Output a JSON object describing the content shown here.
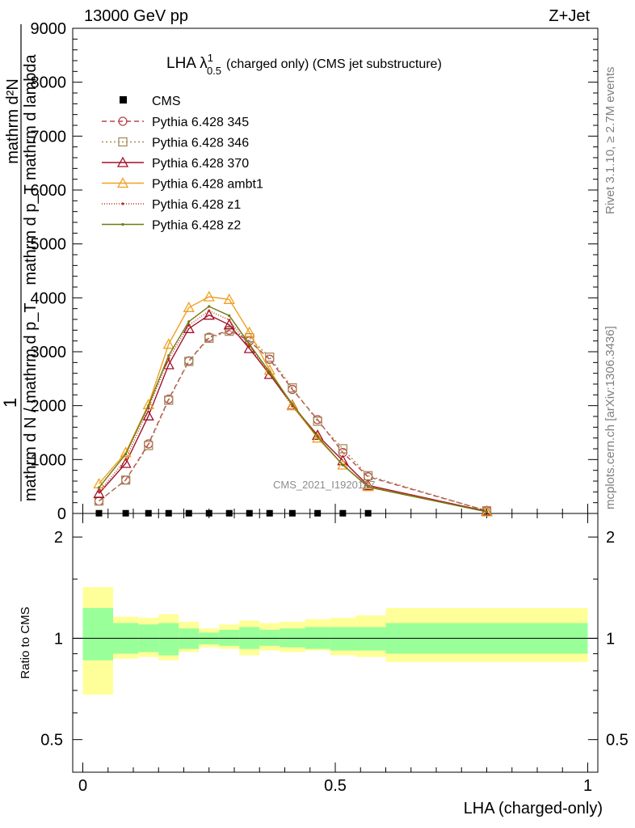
{
  "header": {
    "left": "13000 GeV pp",
    "right": "Z+Jet"
  },
  "title": {
    "main": "LHA λ",
    "sup": "1",
    "sub": "0.5",
    "rest": "(charged only) (CMS jet substructure)"
  },
  "ylabel_upper": {
    "text": "mathrm d N / mathrm d p_T mathrm d lambda",
    "num": "1",
    "denom": "mathrm d N / mathrm d p_T",
    "line2a": "mathrm d²N",
    "line2b": "mathrm d p_T mathrm d lambda"
  },
  "side": {
    "rivet": "Rivet 3.1.10, ≥ 2.7M events",
    "mcplots": "mcplots.cern.ch [arXiv:1306.3436]"
  },
  "watermark": "CMS_2021_I1920187",
  "xlabel": "LHA (charged-only)",
  "ratio_ylabel": "Ratio to CMS",
  "chart_data": {
    "type": "line",
    "x": [
      0.032,
      0.085,
      0.13,
      0.17,
      0.21,
      0.25,
      0.29,
      0.33,
      0.37,
      0.415,
      0.465,
      0.515,
      0.565,
      0.8
    ],
    "xlim": [
      -0.02,
      1.02
    ],
    "ylim": [
      0,
      9000
    ],
    "yticks": [
      0,
      1000,
      2000,
      3000,
      4000,
      5000,
      6000,
      7000,
      8000,
      9000
    ],
    "ytick_labels": [
      "0",
      "1000",
      "2000",
      "3000",
      "4000",
      "5000",
      "6000",
      "7000",
      "8000",
      "9000"
    ],
    "xticks": [
      0,
      0.5,
      1
    ],
    "xtick_labels": [
      "0",
      "0.5",
      "1"
    ],
    "cms": {
      "name": "CMS",
      "x": [
        0.032,
        0.085,
        0.13,
        0.17,
        0.21,
        0.25,
        0.29,
        0.33,
        0.37,
        0.415,
        0.465,
        0.515,
        0.565
      ],
      "values": [
        4,
        4,
        4,
        4,
        4,
        4,
        4,
        4,
        4,
        4,
        4,
        4,
        4
      ]
    },
    "series": [
      {
        "name": "Pythia 6.428 345",
        "color": "#b5474e",
        "dash": "6,4",
        "marker": "circle",
        "values": [
          230,
          620,
          1290,
          2120,
          2830,
          3270,
          3400,
          3200,
          2860,
          2300,
          1740,
          1130,
          680,
          50
        ]
      },
      {
        "name": "Pythia 6.428 346",
        "color": "#a88a58",
        "dash": "2,3",
        "marker": "square",
        "values": [
          230,
          620,
          1260,
          2100,
          2820,
          3250,
          3380,
          3260,
          2900,
          2330,
          1710,
          1200,
          700,
          50
        ]
      },
      {
        "name": "Pythia 6.428 370",
        "color": "#a0102a",
        "dash": "",
        "marker": "triangle",
        "values": [
          370,
          930,
          1810,
          2760,
          3430,
          3680,
          3500,
          3060,
          2580,
          2010,
          1450,
          980,
          520,
          40
        ]
      },
      {
        "name": "Pythia 6.428 ambt1",
        "color": "#f0a020",
        "dash": "",
        "marker": "triangle",
        "values": [
          550,
          1130,
          2020,
          3140,
          3820,
          4020,
          3970,
          3360,
          2660,
          2000,
          1400,
          900,
          500,
          30
        ]
      },
      {
        "name": "Pythia 6.428 z1",
        "color": "#c03020",
        "dash": "1,2",
        "marker": "dot",
        "values": [
          400,
          1000,
          1950,
          2870,
          3490,
          3760,
          3590,
          3100,
          2590,
          1990,
          1420,
          900,
          500,
          30
        ]
      },
      {
        "name": "Pythia 6.428 z2",
        "color": "#6b7a10",
        "dash": "",
        "marker": "dot",
        "values": [
          480,
          1100,
          2000,
          2930,
          3560,
          3840,
          3670,
          3140,
          2620,
          2030,
          1420,
          900,
          490,
          30
        ]
      }
    ],
    "ratio": {
      "ylim": [
        0.4,
        2.35
      ],
      "log": true,
      "yticks": [
        0.5,
        1,
        2
      ],
      "ytick_labels": [
        "0.5",
        "1",
        "2"
      ],
      "bin_edges": [
        0,
        0.06,
        0.11,
        0.15,
        0.19,
        0.23,
        0.27,
        0.31,
        0.35,
        0.39,
        0.44,
        0.49,
        0.54,
        0.6,
        1.0
      ],
      "band_inner": [
        [
          0.86,
          1.23
        ],
        [
          0.9,
          1.11
        ],
        [
          0.91,
          1.1
        ],
        [
          0.89,
          1.11
        ],
        [
          0.93,
          1.07
        ],
        [
          0.96,
          1.04
        ],
        [
          0.95,
          1.06
        ],
        [
          0.93,
          1.08
        ],
        [
          0.95,
          1.06
        ],
        [
          0.94,
          1.07
        ],
        [
          0.93,
          1.08
        ],
        [
          0.92,
          1.08
        ],
        [
          0.92,
          1.08
        ],
        [
          0.9,
          1.11
        ]
      ],
      "band_outer": [
        [
          0.68,
          1.42
        ],
        [
          0.87,
          1.16
        ],
        [
          0.88,
          1.15
        ],
        [
          0.86,
          1.18
        ],
        [
          0.91,
          1.12
        ],
        [
          0.94,
          1.07
        ],
        [
          0.93,
          1.1
        ],
        [
          0.89,
          1.13
        ],
        [
          0.92,
          1.11
        ],
        [
          0.91,
          1.12
        ],
        [
          0.92,
          1.14
        ],
        [
          0.89,
          1.15
        ],
        [
          0.88,
          1.17
        ],
        [
          0.85,
          1.23
        ]
      ]
    }
  }
}
